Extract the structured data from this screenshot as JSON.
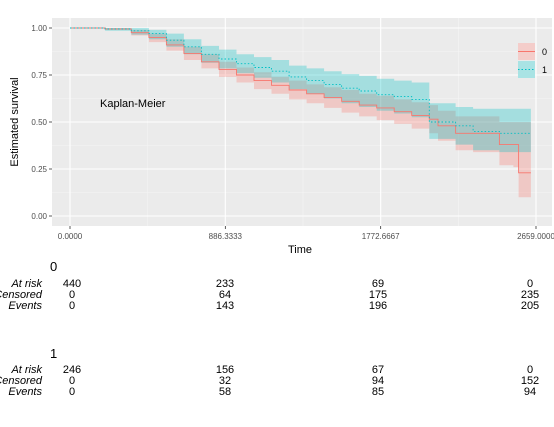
{
  "chart_data": {
    "type": "line",
    "subtype": "kaplan-meier survival curve with confidence bands",
    "annotation": "Kaplan-Meier",
    "xlabel": "Time",
    "ylabel": "Estimated survival",
    "xlim": [
      0,
      2659
    ],
    "ylim": [
      0,
      1
    ],
    "x_ticks": [
      0,
      886.3333,
      1772.6667,
      2659
    ],
    "x_tick_labels": [
      "0.0000",
      "886.3333",
      "1772.6667",
      "2659.0000"
    ],
    "y_ticks": [
      0,
      0.25,
      0.5,
      0.75,
      1
    ],
    "y_tick_labels": [
      "0.00",
      "0.25",
      "0.50",
      "0.75",
      "1.00"
    ],
    "grid": true,
    "legend_position": "right",
    "series": [
      {
        "name": "0",
        "color": "#F8766D",
        "linestyle": "solid",
        "points": [
          [
            0,
            1.0
          ],
          [
            200,
            0.995
          ],
          [
            350,
            0.975
          ],
          [
            450,
            0.95
          ],
          [
            550,
            0.91
          ],
          [
            650,
            0.865
          ],
          [
            750,
            0.82
          ],
          [
            850,
            0.78
          ],
          [
            950,
            0.75
          ],
          [
            1050,
            0.72
          ],
          [
            1150,
            0.695
          ],
          [
            1250,
            0.67
          ],
          [
            1350,
            0.65
          ],
          [
            1450,
            0.63
          ],
          [
            1550,
            0.61
          ],
          [
            1650,
            0.59
          ],
          [
            1750,
            0.575
          ],
          [
            1850,
            0.555
          ],
          [
            1950,
            0.535
          ],
          [
            2050,
            0.515
          ],
          [
            2100,
            0.48
          ],
          [
            2200,
            0.44
          ],
          [
            2300,
            0.44
          ],
          [
            2450,
            0.38
          ],
          [
            2530,
            0.38
          ],
          [
            2560,
            0.23
          ],
          [
            2630,
            0.23
          ]
        ],
        "lower": [
          [
            0,
            1.0
          ],
          [
            200,
            0.99
          ],
          [
            350,
            0.96
          ],
          [
            450,
            0.925
          ],
          [
            550,
            0.88
          ],
          [
            650,
            0.83
          ],
          [
            750,
            0.785
          ],
          [
            850,
            0.74
          ],
          [
            950,
            0.71
          ],
          [
            1050,
            0.675
          ],
          [
            1150,
            0.65
          ],
          [
            1250,
            0.62
          ],
          [
            1350,
            0.6
          ],
          [
            1450,
            0.575
          ],
          [
            1550,
            0.55
          ],
          [
            1650,
            0.53
          ],
          [
            1750,
            0.51
          ],
          [
            1850,
            0.49
          ],
          [
            1950,
            0.465
          ],
          [
            2050,
            0.44
          ],
          [
            2100,
            0.4
          ],
          [
            2200,
            0.35
          ],
          [
            2300,
            0.34
          ],
          [
            2450,
            0.27
          ],
          [
            2530,
            0.26
          ],
          [
            2560,
            0.1
          ],
          [
            2630,
            0.1
          ]
        ],
        "upper": [
          [
            0,
            1.0
          ],
          [
            200,
            1.0
          ],
          [
            350,
            0.99
          ],
          [
            450,
            0.97
          ],
          [
            550,
            0.94
          ],
          [
            650,
            0.9
          ],
          [
            750,
            0.86
          ],
          [
            850,
            0.82
          ],
          [
            950,
            0.79
          ],
          [
            1050,
            0.765
          ],
          [
            1150,
            0.74
          ],
          [
            1250,
            0.72
          ],
          [
            1350,
            0.7
          ],
          [
            1450,
            0.685
          ],
          [
            1550,
            0.67
          ],
          [
            1650,
            0.65
          ],
          [
            1750,
            0.64
          ],
          [
            1850,
            0.62
          ],
          [
            1950,
            0.605
          ],
          [
            2050,
            0.59
          ],
          [
            2100,
            0.56
          ],
          [
            2200,
            0.53
          ],
          [
            2300,
            0.53
          ],
          [
            2450,
            0.5
          ],
          [
            2530,
            0.5
          ],
          [
            2560,
            0.5
          ],
          [
            2630,
            0.5
          ]
        ]
      },
      {
        "name": "1",
        "color": "#00BFC4",
        "linestyle": "dotted",
        "points": [
          [
            0,
            1.0
          ],
          [
            200,
            0.995
          ],
          [
            350,
            0.985
          ],
          [
            450,
            0.97
          ],
          [
            550,
            0.935
          ],
          [
            650,
            0.9
          ],
          [
            750,
            0.86
          ],
          [
            850,
            0.835
          ],
          [
            950,
            0.81
          ],
          [
            1050,
            0.79
          ],
          [
            1150,
            0.77
          ],
          [
            1250,
            0.74
          ],
          [
            1350,
            0.72
          ],
          [
            1450,
            0.7
          ],
          [
            1550,
            0.68
          ],
          [
            1650,
            0.665
          ],
          [
            1750,
            0.645
          ],
          [
            1850,
            0.635
          ],
          [
            1950,
            0.62
          ],
          [
            2050,
            0.5
          ],
          [
            2200,
            0.48
          ],
          [
            2300,
            0.45
          ],
          [
            2450,
            0.44
          ],
          [
            2630,
            0.44
          ]
        ],
        "lower": [
          [
            0,
            1.0
          ],
          [
            200,
            0.985
          ],
          [
            350,
            0.965
          ],
          [
            450,
            0.94
          ],
          [
            550,
            0.9
          ],
          [
            650,
            0.86
          ],
          [
            750,
            0.815
          ],
          [
            850,
            0.785
          ],
          [
            950,
            0.76
          ],
          [
            1050,
            0.735
          ],
          [
            1150,
            0.71
          ],
          [
            1250,
            0.675
          ],
          [
            1350,
            0.65
          ],
          [
            1450,
            0.625
          ],
          [
            1550,
            0.6
          ],
          [
            1650,
            0.58
          ],
          [
            1750,
            0.56
          ],
          [
            1850,
            0.545
          ],
          [
            1950,
            0.525
          ],
          [
            2050,
            0.41
          ],
          [
            2200,
            0.38
          ],
          [
            2300,
            0.35
          ],
          [
            2450,
            0.34
          ],
          [
            2630,
            0.34
          ]
        ],
        "upper": [
          [
            0,
            1.0
          ],
          [
            200,
            1.0
          ],
          [
            350,
            1.0
          ],
          [
            450,
            0.99
          ],
          [
            550,
            0.97
          ],
          [
            650,
            0.94
          ],
          [
            750,
            0.905
          ],
          [
            850,
            0.885
          ],
          [
            950,
            0.86
          ],
          [
            1050,
            0.845
          ],
          [
            1150,
            0.83
          ],
          [
            1250,
            0.8
          ],
          [
            1350,
            0.785
          ],
          [
            1450,
            0.77
          ],
          [
            1550,
            0.755
          ],
          [
            1650,
            0.745
          ],
          [
            1750,
            0.73
          ],
          [
            1850,
            0.72
          ],
          [
            1950,
            0.71
          ],
          [
            2050,
            0.6
          ],
          [
            2200,
            0.58
          ],
          [
            2300,
            0.57
          ],
          [
            2450,
            0.57
          ],
          [
            2630,
            0.57
          ]
        ]
      }
    ]
  },
  "risk_tables": {
    "time_points": [
      "0.0000",
      "886.3333",
      "1772.6667",
      "2659.0000"
    ],
    "row_labels": [
      "At risk",
      "Censored",
      "Events"
    ],
    "groups": [
      {
        "title": "0",
        "at_risk": [
          "440",
          "233",
          "69",
          "0"
        ],
        "censored": [
          "0",
          "64",
          "175",
          "235"
        ],
        "events": [
          "0",
          "143",
          "196",
          "205"
        ]
      },
      {
        "title": "1",
        "at_risk": [
          "246",
          "156",
          "67",
          "0"
        ],
        "censored": [
          "0",
          "32",
          "94",
          "152"
        ],
        "events": [
          "0",
          "58",
          "85",
          "94"
        ]
      }
    ]
  }
}
